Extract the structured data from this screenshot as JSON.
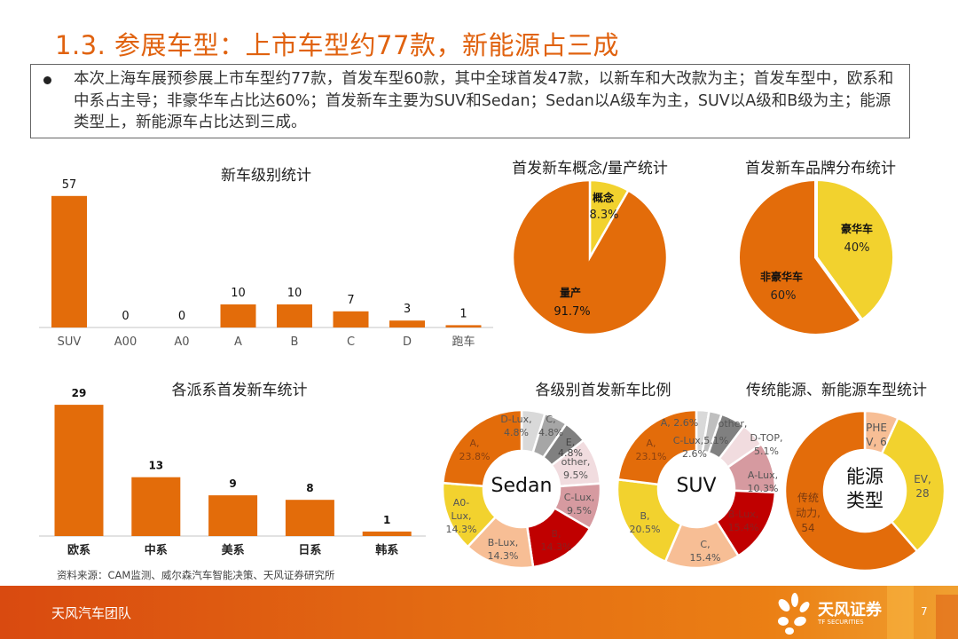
{
  "page": {
    "title": "1.3. 参展车型：上市车型约77款，新能源占三成",
    "bullet": "本次上海车展预参展上市车型约77款，首发车型60款，其中全球首发47款，以新车和大改款为主；首发车型中，欧系和中系占主导；非豪华车占比达60%；首发新车主要为SUV和Sedan；Sedan以A级车为主，SUV以A级和B级为主；能源类型上，新能源车占比达到三成。",
    "source": "资料来源：CAM监测、威尔森汽车智能决策、天风证券研究所",
    "footer_team": "天风汽车团队",
    "footer_brand": "天风证券",
    "footer_brand_en": "TF SECURITIES",
    "page_number": "7"
  },
  "colors": {
    "accent_orange": "#E0620F",
    "bar_orange": "#E36C0A",
    "yellow": "#F2D22E",
    "peach": "#F7BE95",
    "dark_red": "#C00000",
    "rose": "#D69AA0",
    "pale_pink": "#F1DCDF",
    "light_gray": "#D9D9D9",
    "mid_gray": "#A6A6A6",
    "dark_gray": "#808080"
  },
  "chart_data": [
    {
      "id": "grade",
      "type": "bar",
      "title": "新车级别统计",
      "categories": [
        "SUV",
        "A00",
        "A0",
        "A",
        "B",
        "C",
        "D",
        "跑车"
      ],
      "values": [
        57,
        0,
        0,
        10,
        10,
        7,
        3,
        1
      ],
      "xlabel": "",
      "ylabel": "",
      "grid": false,
      "data_labels": true
    },
    {
      "id": "concept",
      "type": "pie",
      "title": "首发新车概念/量产统计",
      "labels": [
        "概念",
        "量产"
      ],
      "values": [
        8.3,
        91.7
      ],
      "display": [
        "8.3%",
        "91.7%"
      ],
      "colors": [
        "#F2D22E",
        "#E36C0A"
      ]
    },
    {
      "id": "brand",
      "type": "pie",
      "title": "首发新车品牌分布统计",
      "labels": [
        "豪华车",
        "非豪华车"
      ],
      "values": [
        40,
        60
      ],
      "display": [
        "40%",
        "60%"
      ],
      "colors": [
        "#F2D22E",
        "#E36C0A"
      ]
    },
    {
      "id": "origin",
      "type": "bar",
      "title": "各派系首发新车统计",
      "categories": [
        "欧系",
        "中系",
        "美系",
        "日系",
        "韩系"
      ],
      "values": [
        29,
        13,
        9,
        8,
        1
      ],
      "xlabel": "",
      "ylabel": "",
      "grid": false,
      "data_labels": true
    },
    {
      "id": "sedan",
      "type": "pie",
      "donut": true,
      "title": "各级别首发新车比例",
      "center_label": "Sedan",
      "labels": [
        "D-Lux",
        "C",
        "E",
        "other",
        "C-Lux",
        "B",
        "B-Lux",
        "A0-Lux",
        "A"
      ],
      "values": [
        4.8,
        4.8,
        4.8,
        9.5,
        9.5,
        14.3,
        14.3,
        14.3,
        23.8
      ],
      "display": [
        "D-Lux, 4.8%",
        "C, 4.8%",
        "E, 4.8%",
        "other, 9.5%",
        "C-Lux, 9.5%",
        "B, 14.3%",
        "B-Lux, 14.3%",
        "A0-Lux, 14.3%",
        "A, 23.8%"
      ],
      "colors": [
        "#D9D9D9",
        "#A6A6A6",
        "#808080",
        "#F1DCDF",
        "#D69AA0",
        "#C00000",
        "#F7BE95",
        "#F2D22E",
        "#E36C0A"
      ]
    },
    {
      "id": "suv",
      "type": "pie",
      "donut": true,
      "center_label": "SUV",
      "labels": [
        "A",
        "C-Lux",
        "other",
        "D-TOP",
        "A-Lux",
        "B-Lux",
        "C",
        "B",
        "A"
      ],
      "values": [
        2.6,
        2.6,
        5.1,
        5.1,
        10.3,
        15.4,
        15.4,
        20.5,
        23.1
      ],
      "display": [
        "A, 2.6%",
        "C-Lux, 2.6%",
        "other, 5.1%",
        "D-TOP, 5.1%",
        "A-Lux, 10.3%",
        "B-Lux, 15.4%",
        "C, 15.4%",
        "B, 20.5%",
        "A, 23.1%"
      ],
      "colors": [
        "#D9D9D9",
        "#BFBFBF",
        "#808080",
        "#F1DCDF",
        "#D69AA0",
        "#C00000",
        "#F7BE95",
        "#F2D22E",
        "#E36C0A"
      ]
    },
    {
      "id": "energy",
      "type": "pie",
      "donut": true,
      "title": "传统能源、新能源车型统计",
      "center_label": "能源类型",
      "labels": [
        "PHEV",
        "EV",
        "传统动力"
      ],
      "values": [
        6,
        28,
        54
      ],
      "display": [
        "PHEV, 6",
        "EV, 28",
        "传统动力, 54"
      ],
      "colors": [
        "#F7BE95",
        "#F2D22E",
        "#E36C0A"
      ]
    }
  ]
}
